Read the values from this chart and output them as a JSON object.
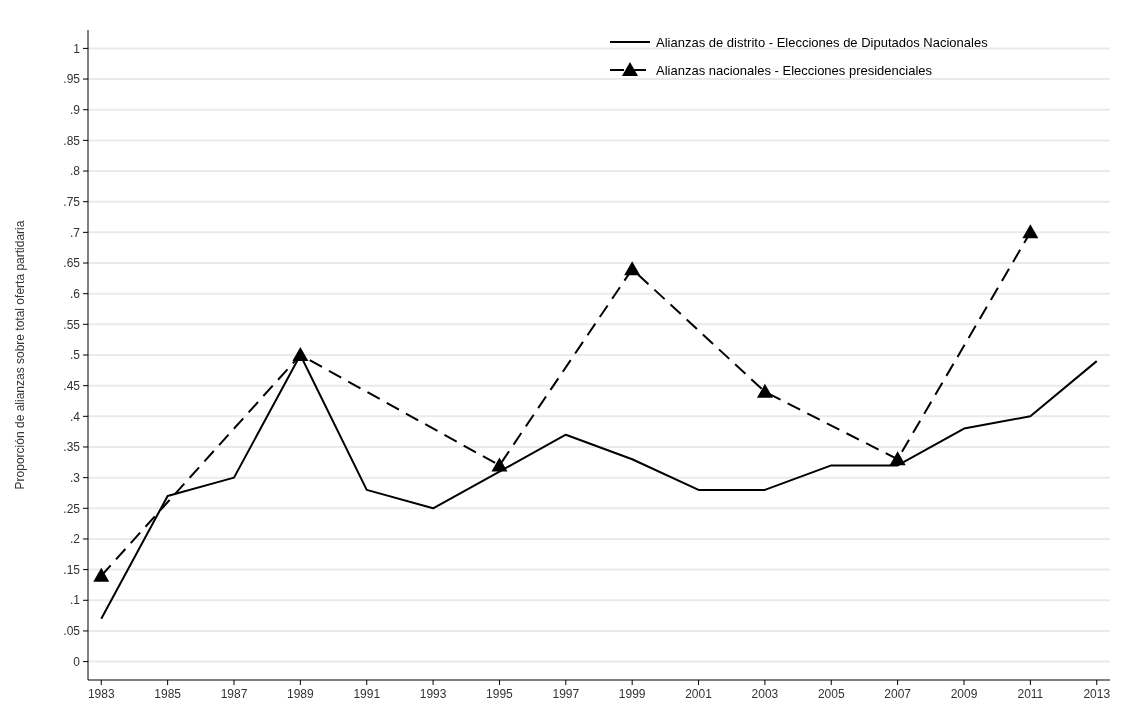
{
  "chart_data": {
    "type": "line",
    "ylabel": "Proporción de alianzas sobre total oferta partidaria",
    "xlim": [
      1982.6,
      2013.4
    ],
    "xticks": [
      1983,
      1985,
      1987,
      1989,
      1991,
      1993,
      1995,
      1997,
      1999,
      2001,
      2003,
      2005,
      2007,
      2009,
      2011,
      2013
    ],
    "ylim": [
      -0.03,
      1.03
    ],
    "yticks": [
      {
        "value": 0,
        "label": "0"
      },
      {
        "value": 0.05,
        "label": ".05"
      },
      {
        "value": 0.1,
        "label": ".1"
      },
      {
        "value": 0.15,
        "label": ".15"
      },
      {
        "value": 0.2,
        "label": ".2"
      },
      {
        "value": 0.25,
        "label": ".25"
      },
      {
        "value": 0.3,
        "label": ".3"
      },
      {
        "value": 0.35,
        "label": ".35"
      },
      {
        "value": 0.4,
        "label": ".4"
      },
      {
        "value": 0.45,
        "label": ".45"
      },
      {
        "value": 0.5,
        "label": ".5"
      },
      {
        "value": 0.55,
        "label": ".55"
      },
      {
        "value": 0.6,
        "label": ".6"
      },
      {
        "value": 0.65,
        "label": ".65"
      },
      {
        "value": 0.7,
        "label": ".7"
      },
      {
        "value": 0.75,
        "label": ".75"
      },
      {
        "value": 0.8,
        "label": ".8"
      },
      {
        "value": 0.85,
        "label": ".85"
      },
      {
        "value": 0.9,
        "label": ".9"
      },
      {
        "value": 0.95,
        "label": ".95"
      },
      {
        "value": 1,
        "label": "1"
      }
    ],
    "grid": "y",
    "legend": "top right",
    "series": [
      {
        "name": "Alianzas de distrito - Elecciones de Diputados Nacionales",
        "color": "#000000",
        "line_style": "solid",
        "marker": "none",
        "x": [
          1983,
          1985,
          1987,
          1989,
          1991,
          1993,
          1995,
          1997,
          1999,
          2001,
          2003,
          2005,
          2007,
          2009,
          2011,
          2013
        ],
        "values": [
          0.07,
          0.27,
          0.3,
          0.5,
          0.28,
          0.25,
          0.31,
          0.37,
          0.33,
          0.28,
          0.28,
          0.32,
          0.32,
          0.38,
          0.4,
          0.49
        ]
      },
      {
        "name": "Alianzas nacionales - Elecciones presidenciales",
        "color": "#000000",
        "line_style": "dashed",
        "marker": "triangle",
        "x": [
          1983,
          1989,
          1995,
          1999,
          2003,
          2007,
          2011
        ],
        "values": [
          0.14,
          0.5,
          0.32,
          0.64,
          0.44,
          0.33,
          0.7
        ]
      }
    ]
  }
}
